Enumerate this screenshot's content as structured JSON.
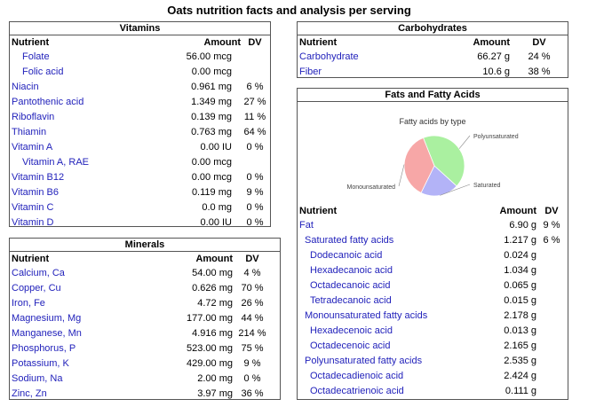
{
  "title": "Oats nutrition facts and analysis per serving",
  "vitamins": {
    "title": "Vitamins",
    "headers": {
      "nutrient": "Nutrient",
      "amount": "Amount",
      "dv": "DV"
    },
    "rows": [
      {
        "name": "Folate",
        "amount": "56.00 mcg",
        "dv": "",
        "indent": 1
      },
      {
        "name": "Folic acid",
        "amount": "0.00 mcg",
        "dv": "",
        "indent": 1
      },
      {
        "name": "Niacin",
        "amount": "0.961 mg",
        "dv": "6 %",
        "indent": 0
      },
      {
        "name": "Pantothenic acid",
        "amount": "1.349 mg",
        "dv": "27 %",
        "indent": 0
      },
      {
        "name": "Riboflavin",
        "amount": "0.139 mg",
        "dv": "11 %",
        "indent": 0
      },
      {
        "name": "Thiamin",
        "amount": "0.763 mg",
        "dv": "64 %",
        "indent": 0
      },
      {
        "name": "Vitamin A",
        "amount": "0.00 IU",
        "dv": "0 %",
        "indent": 0
      },
      {
        "name": "Vitamin A, RAE",
        "amount": "0.00 mcg",
        "dv": "",
        "indent": 1
      },
      {
        "name": "Vitamin B12",
        "amount": "0.00 mcg",
        "dv": "0 %",
        "indent": 0
      },
      {
        "name": "Vitamin B6",
        "amount": "0.119 mg",
        "dv": "9 %",
        "indent": 0
      },
      {
        "name": "Vitamin C",
        "amount": "0.0 mg",
        "dv": "0 %",
        "indent": 0
      },
      {
        "name": "Vitamin D",
        "amount": "0.00 IU",
        "dv": "0 %",
        "indent": 0
      }
    ]
  },
  "minerals": {
    "title": "Minerals",
    "headers": {
      "nutrient": "Nutrient",
      "amount": "Amount",
      "dv": "DV"
    },
    "rows": [
      {
        "name": "Calcium, Ca",
        "amount": "54.00 mg",
        "dv": "4 %"
      },
      {
        "name": "Copper, Cu",
        "amount": "0.626 mg",
        "dv": "70 %"
      },
      {
        "name": "Iron, Fe",
        "amount": "4.72 mg",
        "dv": "26 %"
      },
      {
        "name": "Magnesium, Mg",
        "amount": "177.00 mg",
        "dv": "44 %"
      },
      {
        "name": "Manganese, Mn",
        "amount": "4.916 mg",
        "dv": "214 %"
      },
      {
        "name": "Phosphorus, P",
        "amount": "523.00 mg",
        "dv": "75 %"
      },
      {
        "name": "Potassium, K",
        "amount": "429.00 mg",
        "dv": "9 %"
      },
      {
        "name": "Sodium, Na",
        "amount": "2.00 mg",
        "dv": "0 %"
      },
      {
        "name": "Zinc, Zn",
        "amount": "3.97 mg",
        "dv": "36 %"
      }
    ]
  },
  "carbohydrates": {
    "title": "Carbohydrates",
    "headers": {
      "nutrient": "Nutrient",
      "amount": "Amount",
      "dv": "DV"
    },
    "rows": [
      {
        "name": "Carbohydrate",
        "amount": "66.27 g",
        "dv": "24 %"
      },
      {
        "name": "Fiber",
        "amount": "10.6 g",
        "dv": "38 %"
      }
    ]
  },
  "fats": {
    "title": "Fats and Fatty Acids",
    "headers": {
      "nutrient": "Nutrient",
      "amount": "Amount",
      "dv": "DV"
    },
    "rows": [
      {
        "name": "Fat",
        "amount": "6.90 g",
        "dv": "9 %",
        "indent": 0
      },
      {
        "name": "Saturated fatty acids",
        "amount": "1.217 g",
        "dv": "6 %",
        "indent": 1
      },
      {
        "name": "Dodecanoic acid",
        "amount": "0.024 g",
        "dv": "",
        "indent": 2
      },
      {
        "name": "Hexadecanoic acid",
        "amount": "1.034 g",
        "dv": "",
        "indent": 2
      },
      {
        "name": "Octadecanoic acid",
        "amount": "0.065 g",
        "dv": "",
        "indent": 2
      },
      {
        "name": "Tetradecanoic acid",
        "amount": "0.015 g",
        "dv": "",
        "indent": 2
      },
      {
        "name": "Monounsaturated fatty acids",
        "amount": "2.178 g",
        "dv": "",
        "indent": 1
      },
      {
        "name": "Hexadecenoic acid",
        "amount": "0.013 g",
        "dv": "",
        "indent": 2
      },
      {
        "name": "Octadecenoic acid",
        "amount": "2.165 g",
        "dv": "",
        "indent": 2
      },
      {
        "name": "Polyunsaturated fatty acids",
        "amount": "2.535 g",
        "dv": "",
        "indent": 1
      },
      {
        "name": "Octadecadienoic acid",
        "amount": "2.424 g",
        "dv": "",
        "indent": 2
      },
      {
        "name": "Octadecatrienoic acid",
        "amount": "0.111 g",
        "dv": "",
        "indent": 2
      }
    ]
  },
  "chart_data": {
    "type": "pie",
    "title": "Fatty acids by type",
    "slices": [
      {
        "label": "Polyunsaturated",
        "value": 2.535,
        "color": "#aaf0a0"
      },
      {
        "label": "Saturated",
        "value": 1.217,
        "color": "#b3b3f7"
      },
      {
        "label": "Monounsaturated",
        "value": 2.178,
        "color": "#f7a7a7"
      }
    ]
  }
}
